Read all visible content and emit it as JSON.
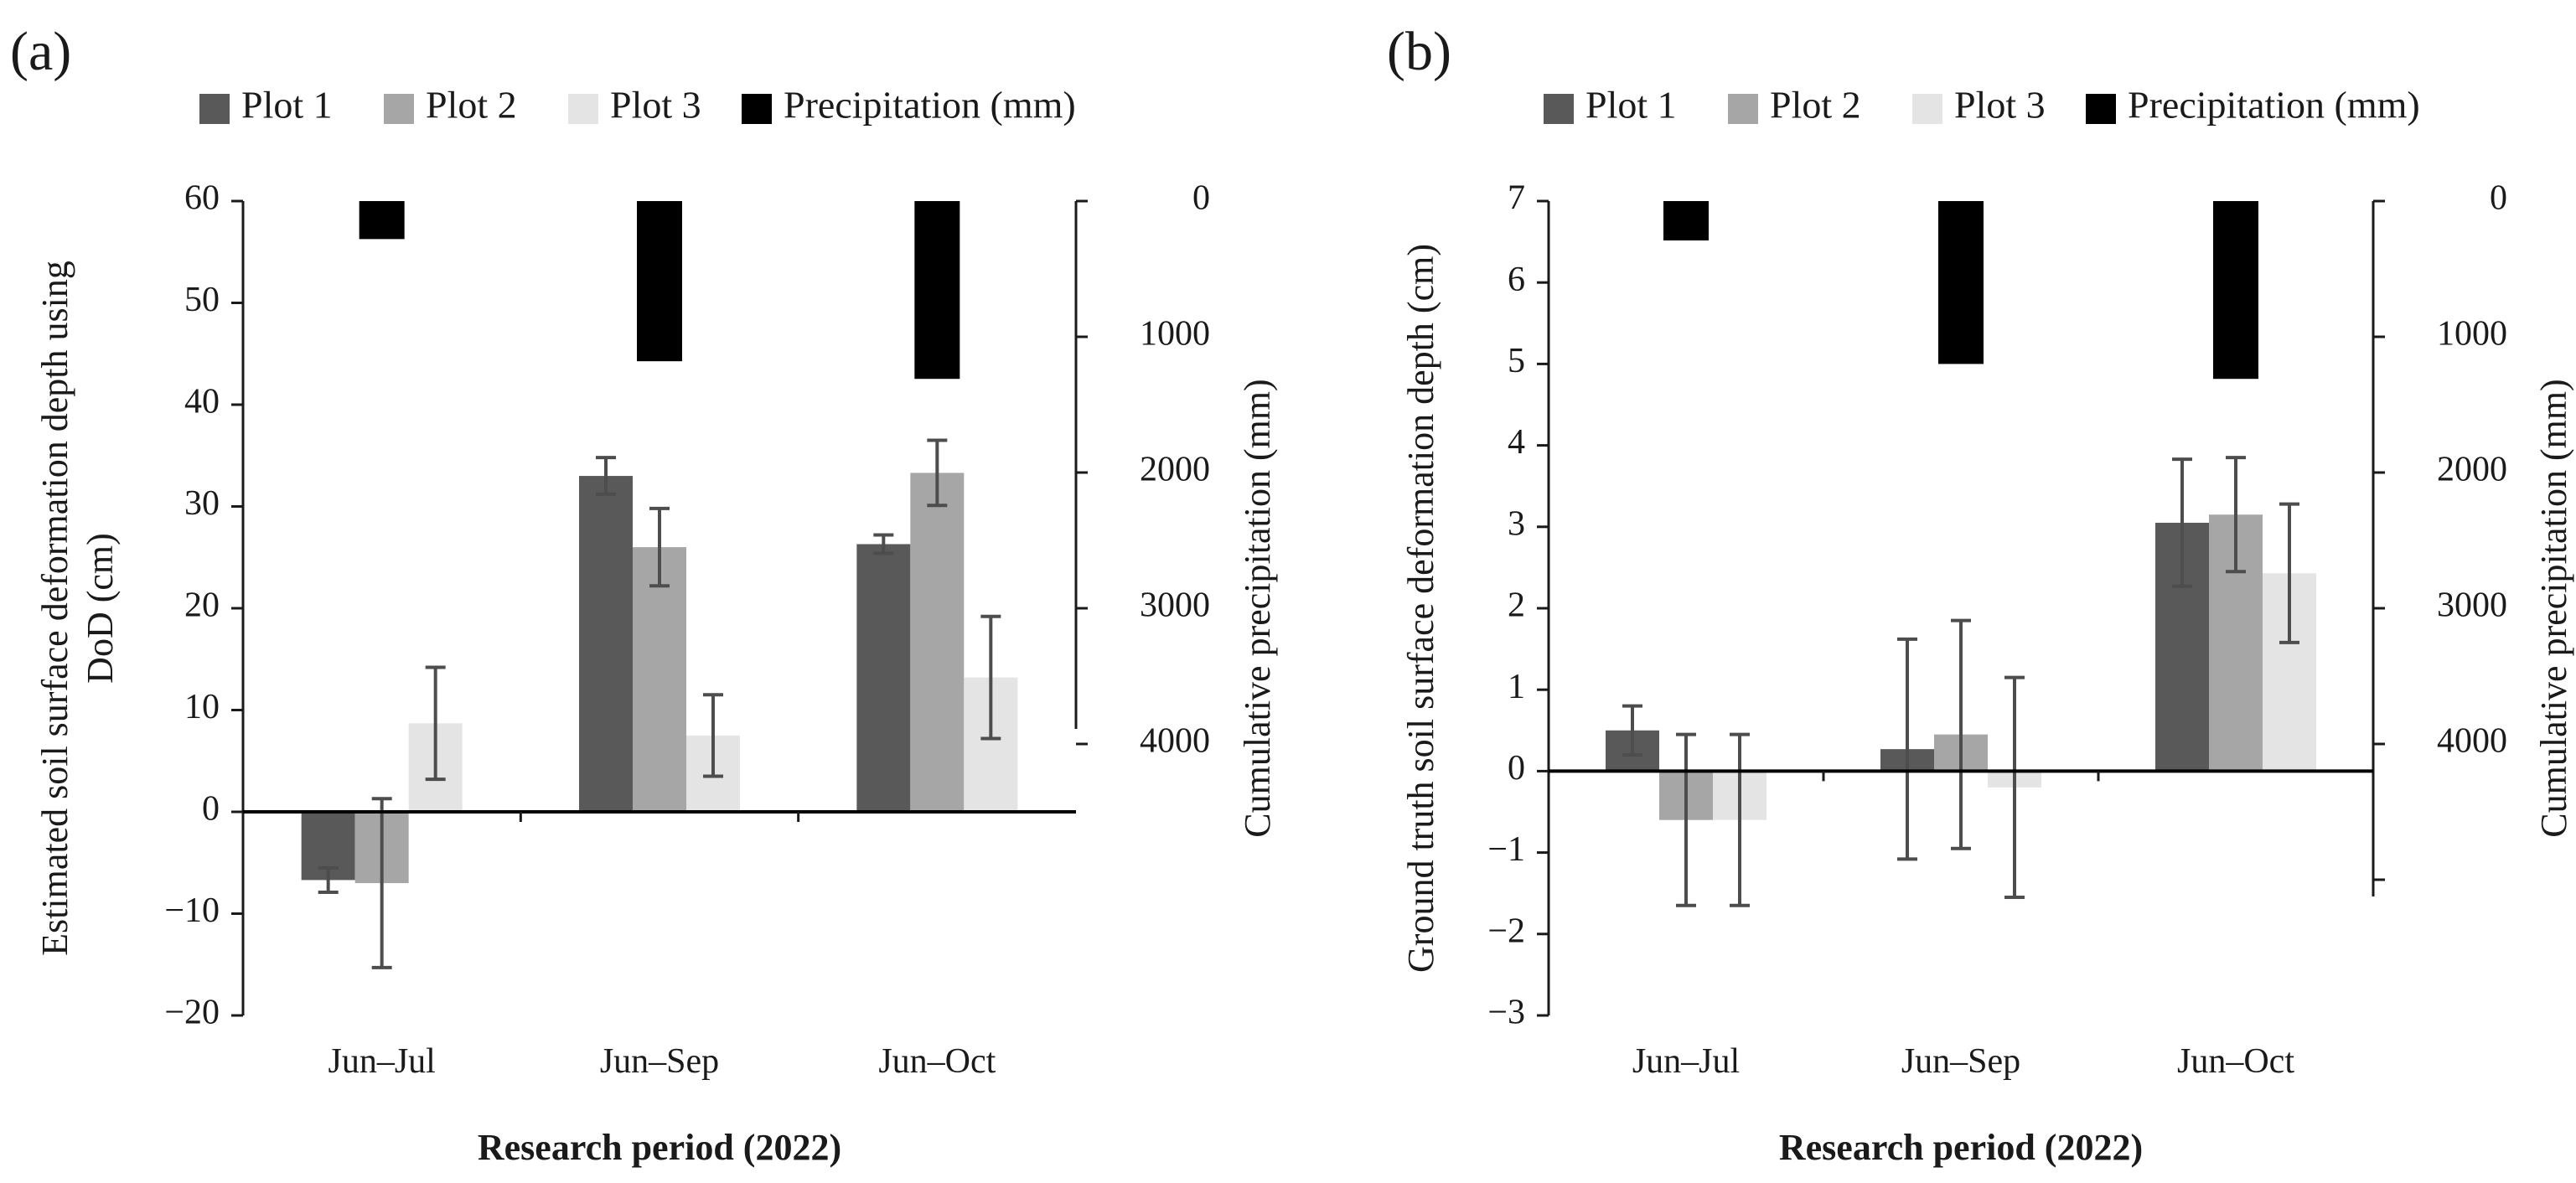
{
  "legend": [
    {
      "name": "Plot 1",
      "color": "#595959"
    },
    {
      "name": "Plot 2",
      "color": "#a6a6a6"
    },
    {
      "name": "Plot 3",
      "color": "#e4e4e4"
    },
    {
      "name": "Precipitation (mm)",
      "color": "#000000"
    }
  ],
  "chart_data": [
    {
      "panel_label": "(a)",
      "type": "bar",
      "title": "",
      "categories": [
        "Jun–Jul",
        "Jun–Sep",
        "Jun–Oct"
      ],
      "xlabel": "Research period (2022)",
      "ylabel_lines": [
        "Estimated soil surface deformation depth using",
        "DoD (cm)"
      ],
      "ylim": [
        -20,
        60
      ],
      "yticks": [
        60,
        50,
        40,
        30,
        20,
        10,
        0,
        -10,
        -20
      ],
      "ytick_labels": [
        "60",
        "50",
        "40",
        "30",
        "20",
        "10",
        "0",
        "−10",
        "−20"
      ],
      "series": [
        {
          "name": "Plot 1",
          "values": [
            -6.7,
            33.0,
            26.3
          ],
          "error": [
            1.2,
            1.8,
            0.9
          ]
        },
        {
          "name": "Plot 2",
          "values": [
            -7.0,
            26.0,
            33.3
          ],
          "error": [
            8.3,
            3.8,
            3.2
          ]
        },
        {
          "name": "Plot 3",
          "values": [
            8.7,
            7.5,
            13.2
          ],
          "error": [
            5.5,
            4.0,
            6.0
          ]
        }
      ],
      "y2label": "Cumulative precipitation (mm)",
      "y2lim": [
        0,
        6000
      ],
      "y2_inverted": true,
      "y2ticks": [
        0,
        1000,
        2000,
        3000,
        4000
      ],
      "y2tick_labels": [
        "0",
        "1000",
        "2000",
        "3000",
        "4000"
      ],
      "precipitation": [
        280,
        1180,
        1310
      ]
    },
    {
      "panel_label": "(b)",
      "type": "bar",
      "title": "",
      "categories": [
        "Jun–Jul",
        "Jun–Sep",
        "Jun–Oct"
      ],
      "xlabel": "Research period (2022)",
      "ylabel_lines": [
        "Ground truth soil surface deformation depth (cm)"
      ],
      "ylim": [
        -3,
        7
      ],
      "yticks": [
        7,
        6,
        5,
        4,
        3,
        2,
        1,
        0,
        -1,
        -2,
        -3
      ],
      "ytick_labels": [
        "7",
        "6",
        "5",
        "4",
        "3",
        "2",
        "1",
        "0",
        "−1",
        "−2",
        "−3"
      ],
      "series": [
        {
          "name": "Plot 1",
          "values": [
            0.5,
            0.27,
            3.05
          ],
          "error": [
            0.3,
            1.35,
            0.78
          ]
        },
        {
          "name": "Plot 2",
          "values": [
            -0.6,
            0.45,
            3.15
          ],
          "error": [
            1.05,
            1.4,
            0.7
          ]
        },
        {
          "name": "Plot 3",
          "values": [
            -0.6,
            -0.2,
            2.43
          ],
          "error": [
            1.05,
            1.35,
            0.85
          ]
        }
      ],
      "y2label": "Cumulative precipitation (mm)",
      "y2lim": [
        0,
        6000
      ],
      "y2_inverted": true,
      "y2ticks": [
        0,
        1000,
        2000,
        3000,
        4000
      ],
      "y2tick_labels": [
        "0",
        "1000",
        "2000",
        "3000",
        "4000"
      ],
      "precipitation": [
        290,
        1200,
        1310
      ]
    }
  ]
}
